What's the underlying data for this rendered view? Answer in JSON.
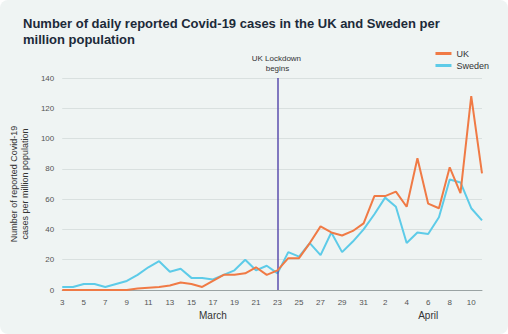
{
  "chart_data": {
    "type": "line",
    "title": "Number of daily reported Covid-19 cases in the UK and Sweden per million population",
    "y_label": "Number of reported Covid-19 cases per million population",
    "categories": [
      "3",
      null,
      "5",
      null,
      "7",
      null,
      "9",
      null,
      "11",
      null,
      "13",
      null,
      "15",
      null,
      "17",
      null,
      "19",
      null,
      "21",
      null,
      "23",
      null,
      "25",
      null,
      "27",
      null,
      "29",
      null,
      "31",
      null,
      "2",
      null,
      "4",
      null,
      "6",
      null,
      "8",
      null,
      "10",
      null
    ],
    "x_groups": [
      "March",
      "April"
    ],
    "series": [
      {
        "name": "UK",
        "color": "#f07a45",
        "values": [
          0,
          0,
          0,
          0,
          0,
          0,
          0,
          1,
          1.5,
          2,
          3,
          5,
          4,
          2,
          6,
          10,
          10,
          11,
          15,
          10,
          13,
          21,
          21,
          31,
          42,
          38,
          36,
          39,
          44,
          62,
          62,
          65,
          55,
          87,
          57,
          54,
          81,
          64,
          128,
          77
        ]
      },
      {
        "name": "Sweden",
        "color": "#5dcbe8",
        "values": [
          2,
          2,
          4,
          4,
          2,
          4,
          6,
          10,
          15,
          19,
          12,
          14,
          8,
          8,
          7,
          10,
          13,
          20,
          13,
          16,
          11,
          25,
          22,
          31,
          23,
          38,
          25,
          32,
          40,
          50,
          61,
          55,
          31,
          38,
          37,
          48,
          73,
          71,
          54,
          46
        ]
      }
    ],
    "ylim": [
      0,
      140
    ],
    "yticks": [
      0,
      20,
      40,
      60,
      80,
      100,
      120,
      140
    ],
    "grid": true,
    "legend": "upper right",
    "annotations": [
      {
        "text": "UK Lockdown begins",
        "x": "23"
      }
    ]
  }
}
